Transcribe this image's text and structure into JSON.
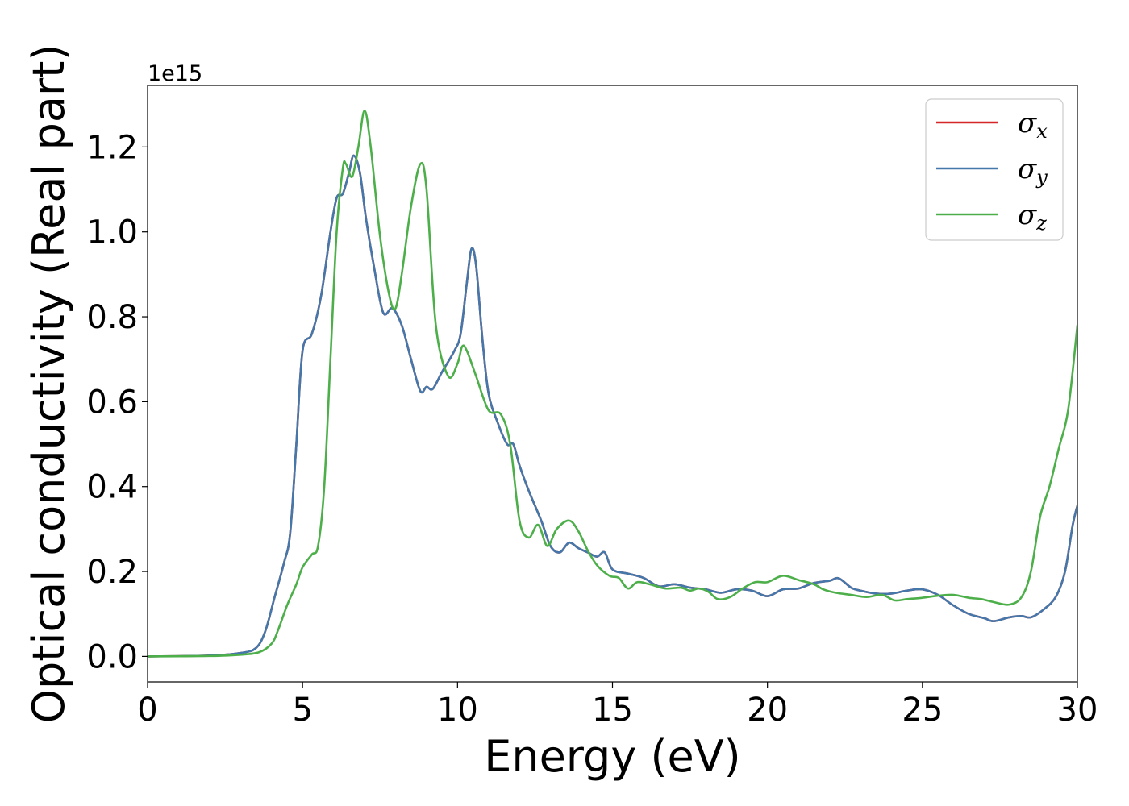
{
  "chart_data": {
    "type": "line",
    "title": "",
    "xlabel": "Energy (eV)",
    "ylabel": "Optical conductivity (Real part)",
    "y_offset_label": "1e15",
    "xlim": [
      0,
      30
    ],
    "ylim": [
      -0.06,
      1.345
    ],
    "x_ticks": [
      0,
      5,
      10,
      15,
      20,
      25,
      30
    ],
    "x_tick_labels": [
      "0",
      "5",
      "10",
      "15",
      "20",
      "25",
      "30"
    ],
    "y_ticks": [
      0.0,
      0.2,
      0.4,
      0.6,
      0.8,
      1.0,
      1.2
    ],
    "y_tick_labels": [
      "0.0",
      "0.2",
      "0.4",
      "0.6",
      "0.8",
      "1.0",
      "1.2"
    ],
    "grid": false,
    "legend_position": "top-right",
    "legend": [
      {
        "symbol": "σ",
        "sub": "x",
        "color": "#d62728"
      },
      {
        "symbol": "σ",
        "sub": "y",
        "color": "#4477aa"
      },
      {
        "symbol": "σ",
        "sub": "z",
        "color": "#4daf4a"
      }
    ],
    "series": [
      {
        "name": "σx",
        "color": "#d62728",
        "points": [
          [
            0,
            0
          ],
          [
            2,
            0.002
          ],
          [
            3,
            0.008
          ],
          [
            3.5,
            0.02
          ],
          [
            3.8,
            0.06
          ],
          [
            4.1,
            0.14
          ],
          [
            4.4,
            0.22
          ],
          [
            4.6,
            0.29
          ],
          [
            4.8,
            0.5
          ],
          [
            5.0,
            0.72
          ],
          [
            5.3,
            0.76
          ],
          [
            5.6,
            0.85
          ],
          [
            5.9,
            1.0
          ],
          [
            6.1,
            1.08
          ],
          [
            6.3,
            1.09
          ],
          [
            6.5,
            1.14
          ],
          [
            6.65,
            1.18
          ],
          [
            6.85,
            1.14
          ],
          [
            7.05,
            1.03
          ],
          [
            7.3,
            0.92
          ],
          [
            7.6,
            0.81
          ],
          [
            7.9,
            0.82
          ],
          [
            8.2,
            0.78
          ],
          [
            8.5,
            0.7
          ],
          [
            8.8,
            0.625
          ],
          [
            9.0,
            0.635
          ],
          [
            9.2,
            0.63
          ],
          [
            9.5,
            0.67
          ],
          [
            9.9,
            0.72
          ],
          [
            10.1,
            0.76
          ],
          [
            10.3,
            0.88
          ],
          [
            10.45,
            0.96
          ],
          [
            10.6,
            0.92
          ],
          [
            10.8,
            0.75
          ],
          [
            11.0,
            0.62
          ],
          [
            11.3,
            0.55
          ],
          [
            11.6,
            0.5
          ],
          [
            11.8,
            0.5
          ],
          [
            12.0,
            0.45
          ],
          [
            12.3,
            0.39
          ],
          [
            12.7,
            0.32
          ],
          [
            13.0,
            0.26
          ],
          [
            13.3,
            0.245
          ],
          [
            13.6,
            0.268
          ],
          [
            13.9,
            0.255
          ],
          [
            14.2,
            0.245
          ],
          [
            14.5,
            0.235
          ],
          [
            14.75,
            0.245
          ],
          [
            15.0,
            0.205
          ],
          [
            15.5,
            0.195
          ],
          [
            16.0,
            0.185
          ],
          [
            16.5,
            0.165
          ],
          [
            17.0,
            0.17
          ],
          [
            17.5,
            0.162
          ],
          [
            18.0,
            0.158
          ],
          [
            18.5,
            0.15
          ],
          [
            19.0,
            0.158
          ],
          [
            19.5,
            0.155
          ],
          [
            20.0,
            0.142
          ],
          [
            20.5,
            0.158
          ],
          [
            21.0,
            0.16
          ],
          [
            21.5,
            0.173
          ],
          [
            22.0,
            0.178
          ],
          [
            22.3,
            0.184
          ],
          [
            22.7,
            0.162
          ],
          [
            23.0,
            0.155
          ],
          [
            23.5,
            0.148
          ],
          [
            24.0,
            0.148
          ],
          [
            24.5,
            0.155
          ],
          [
            25.0,
            0.158
          ],
          [
            25.5,
            0.145
          ],
          [
            26.0,
            0.12
          ],
          [
            26.5,
            0.1
          ],
          [
            27.0,
            0.09
          ],
          [
            27.3,
            0.083
          ],
          [
            27.8,
            0.092
          ],
          [
            28.2,
            0.095
          ],
          [
            28.5,
            0.092
          ],
          [
            28.9,
            0.11
          ],
          [
            29.3,
            0.14
          ],
          [
            29.6,
            0.2
          ],
          [
            29.85,
            0.31
          ],
          [
            30.0,
            0.355
          ]
        ]
      },
      {
        "name": "σy",
        "color": "#4477aa",
        "points": [
          [
            0,
            0
          ],
          [
            2,
            0.002
          ],
          [
            3,
            0.008
          ],
          [
            3.5,
            0.02
          ],
          [
            3.8,
            0.06
          ],
          [
            4.1,
            0.14
          ],
          [
            4.4,
            0.22
          ],
          [
            4.6,
            0.29
          ],
          [
            4.8,
            0.5
          ],
          [
            5.0,
            0.72
          ],
          [
            5.3,
            0.76
          ],
          [
            5.6,
            0.85
          ],
          [
            5.9,
            1.0
          ],
          [
            6.1,
            1.08
          ],
          [
            6.3,
            1.09
          ],
          [
            6.5,
            1.14
          ],
          [
            6.65,
            1.18
          ],
          [
            6.85,
            1.14
          ],
          [
            7.05,
            1.03
          ],
          [
            7.3,
            0.92
          ],
          [
            7.6,
            0.81
          ],
          [
            7.9,
            0.82
          ],
          [
            8.2,
            0.78
          ],
          [
            8.5,
            0.7
          ],
          [
            8.8,
            0.625
          ],
          [
            9.0,
            0.635
          ],
          [
            9.2,
            0.63
          ],
          [
            9.5,
            0.67
          ],
          [
            9.9,
            0.72
          ],
          [
            10.1,
            0.76
          ],
          [
            10.3,
            0.88
          ],
          [
            10.45,
            0.96
          ],
          [
            10.6,
            0.92
          ],
          [
            10.8,
            0.75
          ],
          [
            11.0,
            0.62
          ],
          [
            11.3,
            0.55
          ],
          [
            11.6,
            0.5
          ],
          [
            11.8,
            0.5
          ],
          [
            12.0,
            0.45
          ],
          [
            12.3,
            0.39
          ],
          [
            12.7,
            0.32
          ],
          [
            13.0,
            0.26
          ],
          [
            13.3,
            0.245
          ],
          [
            13.6,
            0.268
          ],
          [
            13.9,
            0.255
          ],
          [
            14.2,
            0.245
          ],
          [
            14.5,
            0.235
          ],
          [
            14.75,
            0.245
          ],
          [
            15.0,
            0.205
          ],
          [
            15.5,
            0.195
          ],
          [
            16.0,
            0.185
          ],
          [
            16.5,
            0.165
          ],
          [
            17.0,
            0.17
          ],
          [
            17.5,
            0.162
          ],
          [
            18.0,
            0.158
          ],
          [
            18.5,
            0.15
          ],
          [
            19.0,
            0.158
          ],
          [
            19.5,
            0.155
          ],
          [
            20.0,
            0.142
          ],
          [
            20.5,
            0.158
          ],
          [
            21.0,
            0.16
          ],
          [
            21.5,
            0.173
          ],
          [
            22.0,
            0.178
          ],
          [
            22.3,
            0.184
          ],
          [
            22.7,
            0.162
          ],
          [
            23.0,
            0.155
          ],
          [
            23.5,
            0.148
          ],
          [
            24.0,
            0.148
          ],
          [
            24.5,
            0.155
          ],
          [
            25.0,
            0.158
          ],
          [
            25.5,
            0.145
          ],
          [
            26.0,
            0.12
          ],
          [
            26.5,
            0.1
          ],
          [
            27.0,
            0.09
          ],
          [
            27.3,
            0.083
          ],
          [
            27.8,
            0.092
          ],
          [
            28.2,
            0.095
          ],
          [
            28.5,
            0.092
          ],
          [
            28.9,
            0.11
          ],
          [
            29.3,
            0.14
          ],
          [
            29.6,
            0.2
          ],
          [
            29.85,
            0.31
          ],
          [
            30.0,
            0.355
          ]
        ]
      },
      {
        "name": "σz",
        "color": "#4daf4a",
        "points": [
          [
            0,
            0
          ],
          [
            2,
            0.001
          ],
          [
            3,
            0.004
          ],
          [
            3.6,
            0.01
          ],
          [
            4.0,
            0.03
          ],
          [
            4.2,
            0.06
          ],
          [
            4.5,
            0.12
          ],
          [
            4.8,
            0.17
          ],
          [
            5.0,
            0.21
          ],
          [
            5.3,
            0.24
          ],
          [
            5.5,
            0.26
          ],
          [
            5.7,
            0.4
          ],
          [
            5.9,
            0.7
          ],
          [
            6.1,
            1.0
          ],
          [
            6.3,
            1.15
          ],
          [
            6.4,
            1.16
          ],
          [
            6.6,
            1.13
          ],
          [
            6.8,
            1.2
          ],
          [
            7.0,
            1.285
          ],
          [
            7.2,
            1.2
          ],
          [
            7.5,
            0.99
          ],
          [
            7.8,
            0.85
          ],
          [
            8.0,
            0.82
          ],
          [
            8.2,
            0.9
          ],
          [
            8.5,
            1.06
          ],
          [
            8.8,
            1.16
          ],
          [
            9.0,
            1.1
          ],
          [
            9.3,
            0.78
          ],
          [
            9.7,
            0.66
          ],
          [
            10.0,
            0.69
          ],
          [
            10.15,
            0.73
          ],
          [
            10.3,
            0.72
          ],
          [
            10.6,
            0.66
          ],
          [
            11.0,
            0.58
          ],
          [
            11.4,
            0.57
          ],
          [
            11.7,
            0.5
          ],
          [
            12.0,
            0.32
          ],
          [
            12.3,
            0.28
          ],
          [
            12.6,
            0.31
          ],
          [
            12.9,
            0.26
          ],
          [
            13.2,
            0.3
          ],
          [
            13.6,
            0.32
          ],
          [
            13.9,
            0.295
          ],
          [
            14.2,
            0.25
          ],
          [
            14.5,
            0.215
          ],
          [
            14.9,
            0.19
          ],
          [
            15.2,
            0.185
          ],
          [
            15.5,
            0.16
          ],
          [
            15.8,
            0.175
          ],
          [
            16.2,
            0.17
          ],
          [
            16.7,
            0.16
          ],
          [
            17.2,
            0.162
          ],
          [
            17.5,
            0.155
          ],
          [
            17.8,
            0.16
          ],
          [
            18.1,
            0.152
          ],
          [
            18.4,
            0.135
          ],
          [
            18.8,
            0.14
          ],
          [
            19.2,
            0.16
          ],
          [
            19.6,
            0.175
          ],
          [
            20.0,
            0.175
          ],
          [
            20.5,
            0.19
          ],
          [
            21.0,
            0.18
          ],
          [
            21.5,
            0.17
          ],
          [
            21.8,
            0.158
          ],
          [
            22.2,
            0.15
          ],
          [
            22.7,
            0.145
          ],
          [
            23.2,
            0.14
          ],
          [
            23.7,
            0.145
          ],
          [
            24.1,
            0.132
          ],
          [
            24.5,
            0.135
          ],
          [
            25.0,
            0.138
          ],
          [
            25.5,
            0.143
          ],
          [
            26.0,
            0.145
          ],
          [
            26.5,
            0.138
          ],
          [
            26.9,
            0.135
          ],
          [
            27.3,
            0.128
          ],
          [
            27.8,
            0.122
          ],
          [
            28.2,
            0.14
          ],
          [
            28.5,
            0.2
          ],
          [
            28.8,
            0.33
          ],
          [
            29.1,
            0.4
          ],
          [
            29.4,
            0.49
          ],
          [
            29.7,
            0.58
          ],
          [
            30.0,
            0.78
          ]
        ]
      }
    ]
  }
}
